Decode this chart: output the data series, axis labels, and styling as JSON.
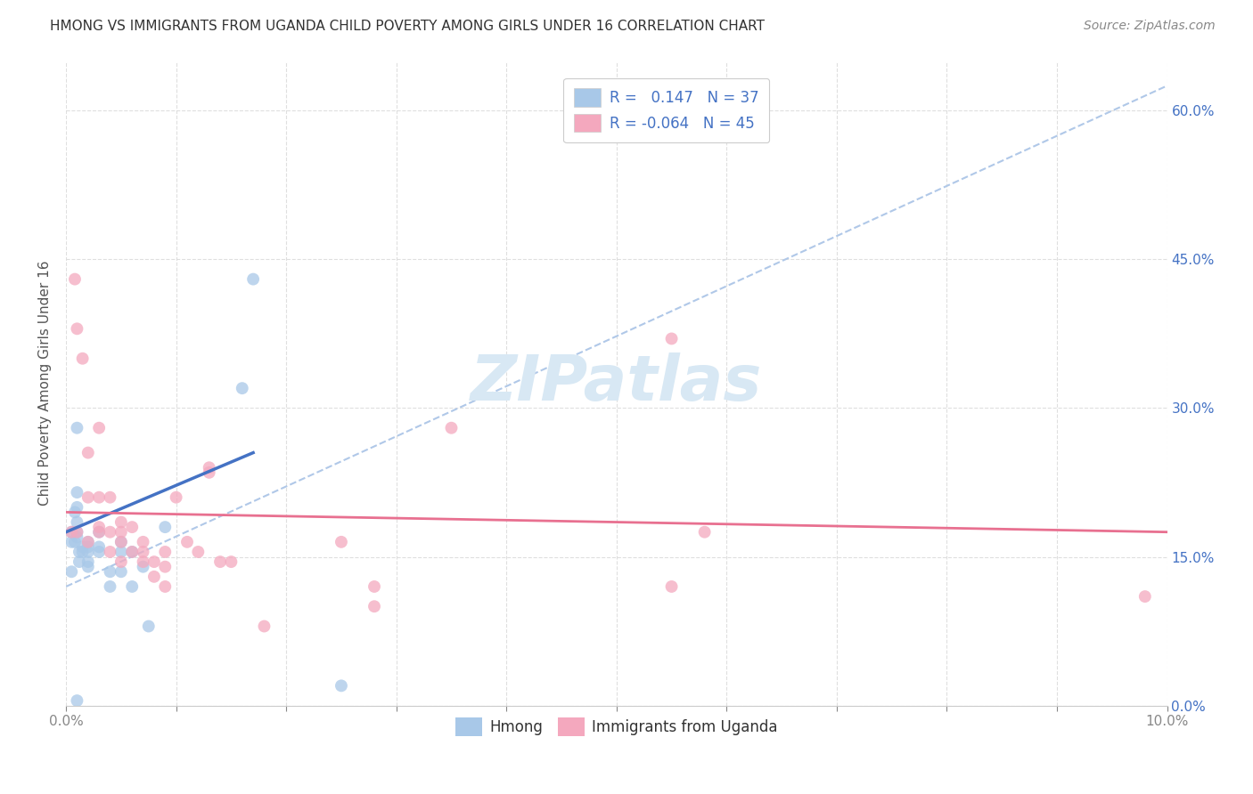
{
  "title": "HMONG VS IMMIGRANTS FROM UGANDA CHILD POVERTY AMONG GIRLS UNDER 16 CORRELATION CHART",
  "source": "Source: ZipAtlas.com",
  "ylabel": "Child Poverty Among Girls Under 16",
  "watermark": "ZIPatlas",
  "hmong_color": "#a8c8e8",
  "uganda_color": "#f4a8be",
  "hmong_line_color": "#4472c4",
  "uganda_line_color": "#e87090",
  "dashed_color": "#b0c8e8",
  "legend_text_color": "#4472c4",
  "x_min": 0.0,
  "x_max": 0.1,
  "y_min": 0.0,
  "y_max": 0.65,
  "hmong_x": [
    0.0005,
    0.0005,
    0.0005,
    0.0008,
    0.0008,
    0.001,
    0.001,
    0.001,
    0.001,
    0.001,
    0.001,
    0.0012,
    0.0012,
    0.0015,
    0.0015,
    0.002,
    0.002,
    0.002,
    0.002,
    0.002,
    0.003,
    0.003,
    0.003,
    0.004,
    0.004,
    0.005,
    0.005,
    0.005,
    0.006,
    0.006,
    0.007,
    0.0075,
    0.009,
    0.016,
    0.017,
    0.025,
    0.001
  ],
  "hmong_y": [
    0.175,
    0.165,
    0.135,
    0.195,
    0.165,
    0.28,
    0.215,
    0.2,
    0.185,
    0.175,
    0.17,
    0.155,
    0.145,
    0.16,
    0.155,
    0.165,
    0.16,
    0.155,
    0.145,
    0.14,
    0.175,
    0.16,
    0.155,
    0.135,
    0.12,
    0.165,
    0.155,
    0.135,
    0.155,
    0.12,
    0.14,
    0.08,
    0.18,
    0.32,
    0.43,
    0.02,
    0.005
  ],
  "uganda_x": [
    0.0005,
    0.0008,
    0.001,
    0.001,
    0.0015,
    0.002,
    0.002,
    0.002,
    0.003,
    0.003,
    0.003,
    0.003,
    0.004,
    0.004,
    0.004,
    0.005,
    0.005,
    0.005,
    0.005,
    0.006,
    0.006,
    0.007,
    0.007,
    0.007,
    0.008,
    0.008,
    0.009,
    0.009,
    0.009,
    0.01,
    0.011,
    0.012,
    0.013,
    0.013,
    0.014,
    0.015,
    0.018,
    0.025,
    0.028,
    0.028,
    0.035,
    0.055,
    0.055,
    0.058,
    0.098
  ],
  "uganda_y": [
    0.175,
    0.43,
    0.38,
    0.175,
    0.35,
    0.255,
    0.21,
    0.165,
    0.28,
    0.21,
    0.18,
    0.175,
    0.21,
    0.175,
    0.155,
    0.185,
    0.175,
    0.165,
    0.145,
    0.18,
    0.155,
    0.165,
    0.155,
    0.145,
    0.145,
    0.13,
    0.155,
    0.14,
    0.12,
    0.21,
    0.165,
    0.155,
    0.24,
    0.235,
    0.145,
    0.145,
    0.08,
    0.165,
    0.12,
    0.1,
    0.28,
    0.37,
    0.12,
    0.175,
    0.11
  ],
  "hmong_trend_x": [
    0.0,
    0.017
  ],
  "hmong_trend_y": [
    0.175,
    0.255
  ],
  "uganda_trend_x": [
    0.0,
    0.1
  ],
  "uganda_trend_y": [
    0.195,
    0.175
  ],
  "dashed_trend_x": [
    0.0,
    0.1
  ],
  "dashed_trend_y": [
    0.12,
    0.625
  ],
  "y_ticks": [
    0.0,
    0.15,
    0.3,
    0.45,
    0.6
  ],
  "y_tick_labels": [
    "0.0%",
    "15.0%",
    "30.0%",
    "45.0%",
    "60.0%"
  ],
  "x_tick_positions": [
    0.0,
    0.01,
    0.02,
    0.03,
    0.04,
    0.05,
    0.06,
    0.07,
    0.08,
    0.09,
    0.1
  ],
  "title_fontsize": 11,
  "source_fontsize": 10,
  "axis_label_fontsize": 11,
  "tick_fontsize": 11,
  "legend_fontsize": 12,
  "watermark_fontsize": 52,
  "watermark_color": "#d8e8f4",
  "background_color": "#ffffff",
  "grid_color": "#d8d8d8",
  "right_axis_color": "#4472c4",
  "scatter_size": 100,
  "scatter_alpha": 0.75
}
